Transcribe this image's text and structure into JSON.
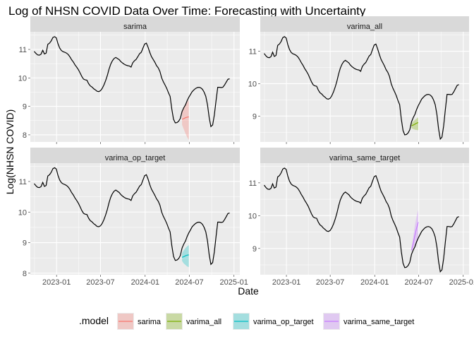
{
  "chart_data": {
    "type": "line",
    "title": "Log of NHSN COVID Data Over Time: Forecasting with Uncertainty",
    "xlabel": "Date",
    "ylabel": "Log(NHSN COVID)",
    "x_ticks": [
      "2023-01",
      "2023-07",
      "2024-01",
      "2024-07",
      "2025-01"
    ],
    "x_range": [
      "2022-09-15",
      "2025-01-25"
    ],
    "grid": true,
    "legend": {
      "title": ".model",
      "position": "bottom",
      "entries": [
        {
          "name": "sarima",
          "color": "#F8766D"
        },
        {
          "name": "varima_all",
          "color": "#7CAE00"
        },
        {
          "name": "varima_op_target",
          "color": "#00BFC4"
        },
        {
          "name": "varima_same_target",
          "color": "#C77CFF"
        }
      ]
    },
    "observed": [
      [
        "2022-10-01",
        10.93
      ],
      [
        "2022-10-08",
        10.86
      ],
      [
        "2022-10-15",
        10.81
      ],
      [
        "2022-10-22",
        10.8
      ],
      [
        "2022-10-29",
        10.83
      ],
      [
        "2022-11-05",
        10.97
      ],
      [
        "2022-11-12",
        10.84
      ],
      [
        "2022-11-19",
        10.87
      ],
      [
        "2022-11-26",
        11.18
      ],
      [
        "2022-12-03",
        11.22
      ],
      [
        "2022-12-10",
        11.3
      ],
      [
        "2022-12-17",
        11.42
      ],
      [
        "2022-12-24",
        11.45
      ],
      [
        "2022-12-31",
        11.41
      ],
      [
        "2023-01-07",
        11.2
      ],
      [
        "2023-01-14",
        11.05
      ],
      [
        "2023-01-21",
        10.96
      ],
      [
        "2023-01-28",
        10.92
      ],
      [
        "2023-02-04",
        10.9
      ],
      [
        "2023-02-11",
        10.87
      ],
      [
        "2023-02-18",
        10.82
      ],
      [
        "2023-02-25",
        10.74
      ],
      [
        "2023-03-04",
        10.64
      ],
      [
        "2023-03-11",
        10.56
      ],
      [
        "2023-03-18",
        10.46
      ],
      [
        "2023-03-25",
        10.38
      ],
      [
        "2023-04-01",
        10.29
      ],
      [
        "2023-04-08",
        10.17
      ],
      [
        "2023-04-15",
        10.05
      ],
      [
        "2023-04-22",
        9.96
      ],
      [
        "2023-04-29",
        9.93
      ],
      [
        "2023-05-06",
        9.92
      ],
      [
        "2023-05-13",
        9.8
      ],
      [
        "2023-05-20",
        9.72
      ],
      [
        "2023-05-27",
        9.68
      ],
      [
        "2023-06-03",
        9.62
      ],
      [
        "2023-06-10",
        9.58
      ],
      [
        "2023-06-17",
        9.53
      ],
      [
        "2023-06-24",
        9.52
      ],
      [
        "2023-07-01",
        9.55
      ],
      [
        "2023-07-08",
        9.63
      ],
      [
        "2023-07-15",
        9.75
      ],
      [
        "2023-07-22",
        9.9
      ],
      [
        "2023-07-29",
        10.08
      ],
      [
        "2023-08-05",
        10.3
      ],
      [
        "2023-08-12",
        10.48
      ],
      [
        "2023-08-19",
        10.6
      ],
      [
        "2023-08-26",
        10.68
      ],
      [
        "2023-09-02",
        10.72
      ],
      [
        "2023-09-09",
        10.68
      ],
      [
        "2023-09-16",
        10.64
      ],
      [
        "2023-09-23",
        10.57
      ],
      [
        "2023-09-30",
        10.52
      ],
      [
        "2023-10-07",
        10.48
      ],
      [
        "2023-10-14",
        10.45
      ],
      [
        "2023-10-21",
        10.43
      ],
      [
        "2023-10-28",
        10.42
      ],
      [
        "2023-11-04",
        10.38
      ],
      [
        "2023-11-11",
        10.53
      ],
      [
        "2023-11-18",
        10.6
      ],
      [
        "2023-11-25",
        10.65
      ],
      [
        "2023-12-02",
        10.75
      ],
      [
        "2023-12-09",
        10.85
      ],
      [
        "2023-12-16",
        10.9
      ],
      [
        "2023-12-23",
        11.05
      ],
      [
        "2023-12-30",
        11.19
      ],
      [
        "2024-01-06",
        11.22
      ],
      [
        "2024-01-13",
        11.08
      ],
      [
        "2024-01-20",
        10.9
      ],
      [
        "2024-01-27",
        10.75
      ],
      [
        "2024-02-03",
        10.65
      ],
      [
        "2024-02-10",
        10.55
      ],
      [
        "2024-02-17",
        10.43
      ],
      [
        "2024-02-24",
        10.35
      ],
      [
        "2024-03-02",
        10.22
      ],
      [
        "2024-03-09",
        10.0
      ],
      [
        "2024-03-16",
        9.86
      ],
      [
        "2024-03-23",
        9.75
      ],
      [
        "2024-03-30",
        9.63
      ],
      [
        "2024-04-06",
        9.48
      ],
      [
        "2024-04-13",
        9.35
      ],
      [
        "2024-04-20",
        8.9
      ],
      [
        "2024-04-27",
        8.55
      ],
      [
        "2024-05-04",
        8.42
      ],
      [
        "2024-05-11",
        8.43
      ],
      [
        "2024-05-18",
        8.48
      ],
      [
        "2024-05-25",
        8.58
      ],
      [
        "2024-06-01",
        8.82
      ],
      [
        "2024-06-08",
        8.95
      ],
      [
        "2024-06-15",
        9.05
      ],
      [
        "2024-06-22",
        9.2
      ],
      [
        "2024-06-29",
        9.32
      ],
      [
        "2024-07-06",
        9.42
      ],
      [
        "2024-07-13",
        9.52
      ],
      [
        "2024-07-20",
        9.58
      ],
      [
        "2024-07-27",
        9.63
      ],
      [
        "2024-08-03",
        9.66
      ],
      [
        "2024-08-10",
        9.67
      ],
      [
        "2024-08-17",
        9.65
      ],
      [
        "2024-08-24",
        9.6
      ],
      [
        "2024-08-31",
        9.5
      ],
      [
        "2024-09-07",
        9.35
      ],
      [
        "2024-09-14",
        9.05
      ],
      [
        "2024-09-21",
        8.6
      ],
      [
        "2024-09-28",
        8.29
      ],
      [
        "2024-10-05",
        8.35
      ],
      [
        "2024-10-12",
        8.7
      ],
      [
        "2024-10-19",
        9.2
      ],
      [
        "2024-10-26",
        9.67
      ],
      [
        "2024-11-02",
        9.67
      ],
      [
        "2024-11-09",
        9.66
      ],
      [
        "2024-11-16",
        9.67
      ],
      [
        "2024-11-23",
        9.75
      ],
      [
        "2024-11-30",
        9.85
      ],
      [
        "2024-12-07",
        9.95
      ],
      [
        "2024-12-14",
        9.97
      ]
    ],
    "panels": [
      {
        "strip": "sarima",
        "color": "#F8766D",
        "y_ticks": [
          8,
          9,
          10,
          11
        ],
        "ylim": [
          7.75,
          11.62
        ],
        "forecast": [
          {
            "x": "2024-06-01",
            "y": 8.55,
            "lo": 8.35,
            "hi": 8.78
          },
          {
            "x": "2024-06-08",
            "y": 8.57,
            "lo": 8.2,
            "hi": 8.92
          },
          {
            "x": "2024-06-15",
            "y": 8.6,
            "lo": 8.05,
            "hi": 9.05
          },
          {
            "x": "2024-06-22",
            "y": 8.62,
            "lo": 7.92,
            "hi": 9.15
          },
          {
            "x": "2024-06-29",
            "y": 8.63,
            "lo": 7.82,
            "hi": 9.22
          }
        ]
      },
      {
        "strip": "varima_all",
        "color": "#7CAE00",
        "y_ticks": [
          9,
          10,
          11
        ],
        "ylim": [
          8.2,
          11.6
        ],
        "forecast": [
          {
            "x": "2024-06-01",
            "y": 8.7,
            "lo": 8.62,
            "hi": 8.78
          },
          {
            "x": "2024-06-08",
            "y": 8.72,
            "lo": 8.6,
            "hi": 8.83
          },
          {
            "x": "2024-06-15",
            "y": 8.75,
            "lo": 8.58,
            "hi": 8.88
          },
          {
            "x": "2024-06-22",
            "y": 8.78,
            "lo": 8.57,
            "hi": 8.92
          },
          {
            "x": "2024-06-29",
            "y": 8.8,
            "lo": 8.56,
            "hi": 8.96
          }
        ]
      },
      {
        "strip": "varima_op_target",
        "color": "#00BFC4",
        "y_ticks": [
          8,
          9,
          10,
          11
        ],
        "ylim": [
          7.95,
          11.6
        ],
        "forecast": [
          {
            "x": "2024-06-01",
            "y": 8.52,
            "lo": 8.4,
            "hi": 8.65
          },
          {
            "x": "2024-06-08",
            "y": 8.54,
            "lo": 8.32,
            "hi": 8.75
          },
          {
            "x": "2024-06-15",
            "y": 8.57,
            "lo": 8.27,
            "hi": 8.82
          },
          {
            "x": "2024-06-22",
            "y": 8.59,
            "lo": 8.22,
            "hi": 8.88
          },
          {
            "x": "2024-06-29",
            "y": 8.6,
            "lo": 8.2,
            "hi": 8.92
          }
        ]
      },
      {
        "strip": "varima_same_target",
        "color": "#C77CFF",
        "y_ticks": [
          9,
          10,
          11
        ],
        "ylim": [
          8.2,
          11.6
        ],
        "forecast": [
          {
            "x": "2024-06-01",
            "y": 8.95,
            "lo": 8.9,
            "hi": 9.02
          },
          {
            "x": "2024-06-08",
            "y": 9.15,
            "lo": 9.0,
            "hi": 9.35
          },
          {
            "x": "2024-06-15",
            "y": 9.4,
            "lo": 9.1,
            "hi": 9.7
          },
          {
            "x": "2024-06-22",
            "y": 9.62,
            "lo": 9.2,
            "hi": 9.98
          },
          {
            "x": "2024-06-29",
            "y": 9.8,
            "lo": 9.3,
            "hi": 10.18
          }
        ]
      }
    ]
  }
}
